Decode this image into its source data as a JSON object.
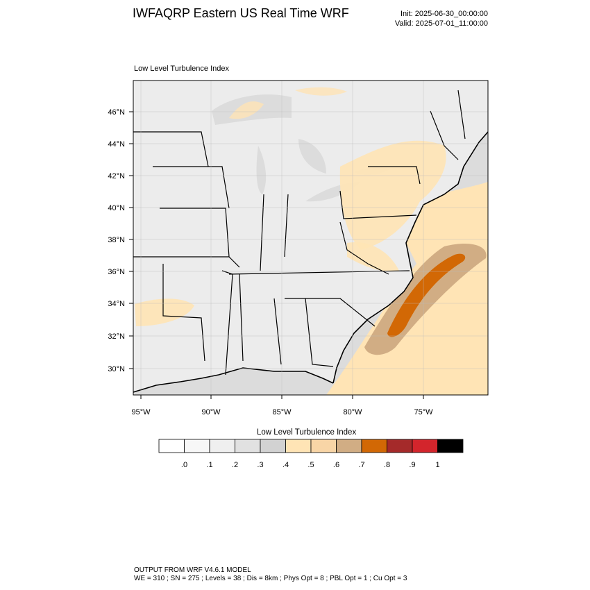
{
  "header": {
    "title": "IWFAQRP Eastern US Real Time WRF",
    "init": "Init: 2025-06-30_00:00:00",
    "valid": "Valid: 2025-07-01_11:00:00"
  },
  "map": {
    "subtitle": "Low Level Turbulence Index",
    "lat_labels": [
      "46°N",
      "44°N",
      "42°N",
      "40°N",
      "38°N",
      "36°N",
      "34°N",
      "32°N",
      "30°N"
    ],
    "lon_labels": [
      "95°W",
      "90°W",
      "85°W",
      "80°W",
      "75°W"
    ]
  },
  "colorbar": {
    "title": "Low Level Turbulence Index",
    "tick_labels": [
      ".0",
      ".1",
      ".2",
      ".3",
      ".4",
      ".5",
      ".6",
      ".7",
      ".8",
      ".9",
      "1"
    ],
    "colors": [
      "#ffffff",
      "#f7f7f7",
      "#efefef",
      "#e1e1e1",
      "#d2d2d2",
      "#ffe4b5",
      "#f8d5a6",
      "#d1ad84",
      "#d26805",
      "#a52a2a",
      "#d3252c",
      "#000000"
    ]
  },
  "footer": {
    "line1": "OUTPUT FROM WRF V4.6.1 MODEL",
    "line2": "WE = 310 ; SN = 275 ; Levels = 38 ; Dis = 8km ; Phys Opt = 8 ; PBL Opt = 1 ; Cu Opt = 3"
  }
}
